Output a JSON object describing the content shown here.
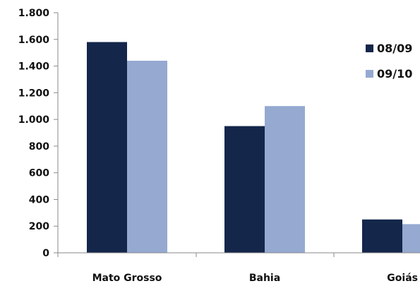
{
  "chart_data": {
    "type": "bar",
    "title": "",
    "xlabel": "",
    "ylabel": "",
    "categories": [
      "Mato Grosso",
      "Bahia",
      "Goiás"
    ],
    "series": [
      {
        "name": "08/09",
        "color": "#14264a",
        "values": [
          1580,
          950,
          250
        ]
      },
      {
        "name": "09/10",
        "color": "#95a9d1",
        "values": [
          1440,
          1100,
          215
        ]
      }
    ],
    "ylim": [
      0,
      1800
    ],
    "yticks": [
      0,
      200,
      400,
      600,
      800,
      1000,
      1200,
      1400,
      1600,
      1800
    ],
    "ytick_labels": [
      "0",
      "200",
      "400",
      "600",
      "800",
      "1.000",
      "1.200",
      "1.400",
      "1.600",
      "1.800"
    ],
    "grid": false,
    "legend_position": "right"
  }
}
